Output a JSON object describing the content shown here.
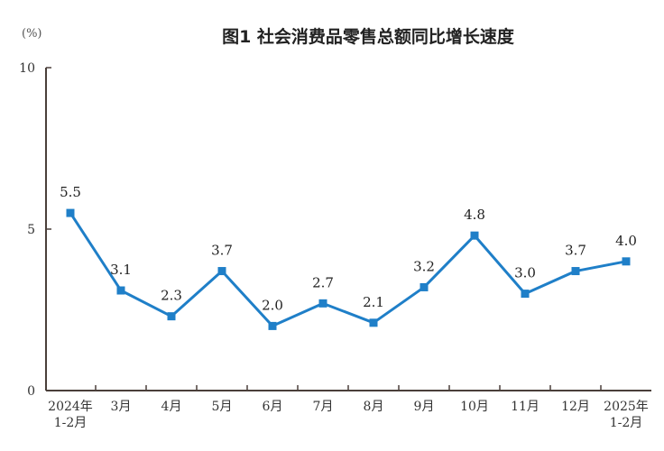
{
  "chart_data": {
    "type": "line",
    "title": "图1  社会消费品零售总额同比增长速度",
    "ylabel": "(%)",
    "xlabel": "",
    "ylim": [
      0,
      10
    ],
    "yticks": [
      "0",
      "5",
      "10"
    ],
    "categories": [
      [
        "2024年",
        "1-2月"
      ],
      [
        "3月"
      ],
      [
        "4月"
      ],
      [
        "5月"
      ],
      [
        "6月"
      ],
      [
        "7月"
      ],
      [
        "8月"
      ],
      [
        "9月"
      ],
      [
        "10月"
      ],
      [
        "11月"
      ],
      [
        "12月"
      ],
      [
        "2025年",
        "1-2月"
      ]
    ],
    "values": [
      5.5,
      3.1,
      2.3,
      3.7,
      2.0,
      2.7,
      2.1,
      3.2,
      4.8,
      3.0,
      3.7,
      4.0
    ],
    "data_labels": [
      "5.5",
      "3.1",
      "2.3",
      "3.7",
      "2.0",
      "2.7",
      "2.1",
      "3.2",
      "4.8",
      "3.0",
      "3.7",
      "4.0"
    ],
    "grid": false,
    "line_color": "#1f7fc8",
    "axis_color": "#4a3f3a"
  }
}
